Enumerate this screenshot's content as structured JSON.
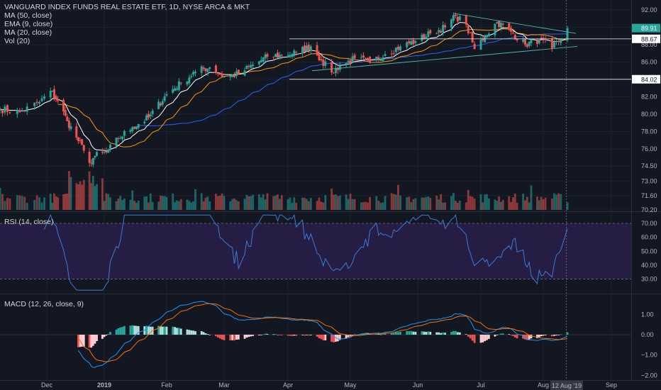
{
  "colors": {
    "bg": "#131722",
    "up": "#26a69a",
    "down": "#ef5350",
    "grid": "#1e222d",
    "ma50": "#2962ff",
    "ema9": "#ffffff",
    "ma20": "#ff9800",
    "rsi": "#3a7bd5",
    "rsi_band": "#2a1f4a",
    "macd": "#2196f3",
    "signal": "#ff6d00",
    "hist_up_strong": "#26a69a",
    "hist_up_weak": "#b2dfdb",
    "hist_down_strong": "#ef5350",
    "hist_down_weak": "#ffcdd2"
  },
  "legend": {
    "title": "VANGUARD INDEX FUNDS REAL ESTATE ETF, 1D, NYSE ARCA & MKT",
    "ma50": "MA (50, close)",
    "ema9": "EMA (9, close)",
    "ma20": "MA (20, close)",
    "vol": "Vol (20)",
    "rsi": "RSI (14, close)",
    "macd": "MACD (12, 26, close, 9)"
  },
  "crosshair_label": "12 Aug '19",
  "chart_data": [
    {
      "type": "candlestick",
      "title": "VANGUARD INDEX FUNDS REAL ESTATE ETF, 1D, NYSE ARCA & MKT",
      "y_ticks": [
        "92.00",
        "90.00",
        "88.00",
        "86.00",
        "84.00",
        "82.00",
        "80.00",
        "78.00",
        "76.00",
        "74.50",
        "73.00",
        "71.60",
        "70.20"
      ],
      "y_tick_values": [
        92,
        90,
        88,
        86,
        84,
        82,
        80,
        78,
        76,
        74.5,
        73,
        71.6,
        70.2
      ],
      "x_ticks": [
        "Dec",
        "2019",
        "Feb",
        "Mar",
        "Apr",
        "May",
        "Jun",
        "Jul",
        "Aug",
        "Sep"
      ],
      "price_labels": [
        {
          "label": "89.91",
          "value": 89.91,
          "color": "#26a69a"
        },
        {
          "label": "88.67",
          "value": 88.67,
          "color": "#ffffff"
        },
        {
          "label": "84.02",
          "value": 84.02,
          "color": "#ffffff"
        }
      ],
      "horizontal_lines": [
        88.67,
        84.02
      ],
      "anchors": [
        {
          "date": "2018-11-12",
          "close": 80.6
        },
        {
          "date": "2018-11-20",
          "close": 80.2
        },
        {
          "date": "2018-11-28",
          "close": 81.4
        },
        {
          "date": "2018-12-03",
          "close": 82.7
        },
        {
          "date": "2018-12-07",
          "close": 81.5
        },
        {
          "date": "2018-12-12",
          "close": 79.2
        },
        {
          "date": "2018-12-17",
          "close": 77.3
        },
        {
          "date": "2018-12-21",
          "close": 75.8
        },
        {
          "date": "2018-12-24",
          "close": 74.4
        },
        {
          "date": "2018-12-27",
          "close": 75.2
        },
        {
          "date": "2019-01-02",
          "close": 75.6
        },
        {
          "date": "2019-01-08",
          "close": 77.2
        },
        {
          "date": "2019-01-15",
          "close": 78.5
        },
        {
          "date": "2019-01-23",
          "close": 79.6
        },
        {
          "date": "2019-02-01",
          "close": 82.3
        },
        {
          "date": "2019-02-08",
          "close": 83.6
        },
        {
          "date": "2019-02-15",
          "close": 84.9
        },
        {
          "date": "2019-02-22",
          "close": 85.4
        },
        {
          "date": "2019-03-01",
          "close": 84.3
        },
        {
          "date": "2019-03-08",
          "close": 84.6
        },
        {
          "date": "2019-03-15",
          "close": 85.7
        },
        {
          "date": "2019-03-22",
          "close": 86.6
        },
        {
          "date": "2019-03-29",
          "close": 86.8
        },
        {
          "date": "2019-04-05",
          "close": 87.1
        },
        {
          "date": "2019-04-12",
          "close": 87.8
        },
        {
          "date": "2019-04-17",
          "close": 86.2
        },
        {
          "date": "2019-04-22",
          "close": 84.8
        },
        {
          "date": "2019-04-26",
          "close": 85.6
        },
        {
          "date": "2019-05-03",
          "close": 86.4
        },
        {
          "date": "2019-05-10",
          "close": 86.0
        },
        {
          "date": "2019-05-17",
          "close": 86.9
        },
        {
          "date": "2019-05-24",
          "close": 87.8
        },
        {
          "date": "2019-05-31",
          "close": 88.4
        },
        {
          "date": "2019-06-07",
          "close": 89.3
        },
        {
          "date": "2019-06-14",
          "close": 90.0
        },
        {
          "date": "2019-06-19",
          "close": 91.3
        },
        {
          "date": "2019-06-24",
          "close": 90.3
        },
        {
          "date": "2019-06-28",
          "close": 87.5
        },
        {
          "date": "2019-07-03",
          "close": 89.0
        },
        {
          "date": "2019-07-09",
          "close": 90.6
        },
        {
          "date": "2019-07-16",
          "close": 89.5
        },
        {
          "date": "2019-07-23",
          "close": 88.0
        },
        {
          "date": "2019-07-30",
          "close": 88.6
        },
        {
          "date": "2019-08-05",
          "close": 87.6
        },
        {
          "date": "2019-08-09",
          "close": 88.7
        },
        {
          "date": "2019-08-12",
          "close": 89.91
        }
      ]
    },
    {
      "type": "line",
      "title": "RSI (14, close)",
      "y_ticks": [
        "70.00",
        "60.00",
        "50.00",
        "40.00",
        "30.00"
      ],
      "y_tick_values": [
        70,
        60,
        50,
        40,
        30
      ],
      "band": [
        30,
        70
      ]
    },
    {
      "type": "bar",
      "title": "MACD (12, 26, close, 9)",
      "y_ticks": [
        "1.00",
        "0.00",
        "−1.00",
        "−2.00"
      ],
      "y_tick_values": [
        1,
        0,
        -1,
        -2
      ]
    }
  ]
}
